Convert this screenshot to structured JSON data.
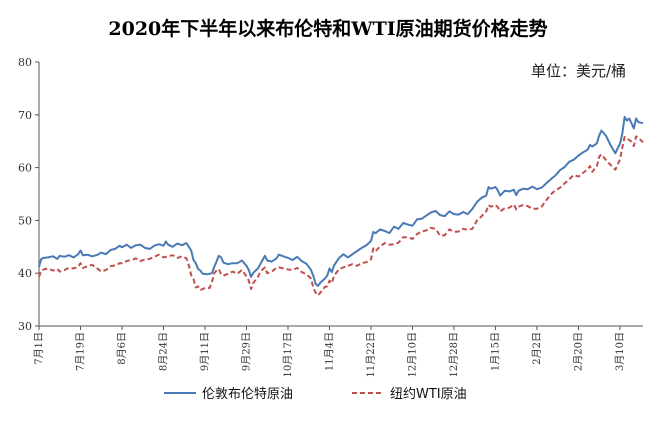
{
  "chart_data": {
    "type": "line",
    "title": "2020年下半年以来布伦特和WTI原油期货价格走势",
    "unit_label": "单位：美元/桶",
    "ylim": [
      30,
      80
    ],
    "y_ticks": [
      30,
      40,
      50,
      60,
      70,
      80
    ],
    "x_ticks": [
      "7月1日",
      "7月19日",
      "8月6日",
      "8月24日",
      "9月11日",
      "9月29日",
      "10月17日",
      "11月4日",
      "11月22日",
      "12月10日",
      "12月28日",
      "1月15日",
      "2月2日",
      "2月20日",
      "3月10日"
    ],
    "x_tick_day_offsets": [
      0,
      18,
      36,
      54,
      72,
      90,
      108,
      126,
      144,
      162,
      180,
      198,
      216,
      234,
      252
    ],
    "x_range_days": [
      0,
      262
    ],
    "grid": false,
    "legend_position": "bottom",
    "series": [
      {
        "name": "伦敦布伦特原油",
        "color": "#4a7ab5",
        "dash": "solid",
        "points": [
          [
            0,
            41.2
          ],
          [
            1,
            42.7
          ],
          [
            2,
            42.9
          ],
          [
            4,
            43.0
          ],
          [
            6,
            43.2
          ],
          [
            8,
            42.7
          ],
          [
            9,
            43.3
          ],
          [
            11,
            43.1
          ],
          [
            13,
            43.4
          ],
          [
            15,
            43.0
          ],
          [
            17,
            43.6
          ],
          [
            18,
            44.3
          ],
          [
            19,
            43.4
          ],
          [
            21,
            43.5
          ],
          [
            23,
            43.2
          ],
          [
            25,
            43.4
          ],
          [
            27,
            43.9
          ],
          [
            29,
            43.6
          ],
          [
            31,
            44.4
          ],
          [
            33,
            44.6
          ],
          [
            35,
            45.2
          ],
          [
            36,
            44.9
          ],
          [
            38,
            45.4
          ],
          [
            40,
            44.8
          ],
          [
            42,
            45.3
          ],
          [
            44,
            45.4
          ],
          [
            46,
            44.8
          ],
          [
            48,
            44.6
          ],
          [
            50,
            45.2
          ],
          [
            52,
            45.5
          ],
          [
            54,
            45.2
          ],
          [
            55,
            46.0
          ],
          [
            56,
            45.4
          ],
          [
            58,
            45.0
          ],
          [
            60,
            45.6
          ],
          [
            62,
            45.3
          ],
          [
            64,
            45.7
          ],
          [
            65,
            45.0
          ],
          [
            66,
            44.3
          ],
          [
            67,
            42.5
          ],
          [
            68,
            41.9
          ],
          [
            69,
            40.8
          ],
          [
            70,
            40.5
          ],
          [
            71,
            39.9
          ],
          [
            73,
            39.8
          ],
          [
            75,
            40.0
          ],
          [
            76,
            41.2
          ],
          [
            77,
            42.2
          ],
          [
            78,
            43.3
          ],
          [
            79,
            43.0
          ],
          [
            80,
            42.0
          ],
          [
            82,
            41.7
          ],
          [
            84,
            41.9
          ],
          [
            86,
            41.9
          ],
          [
            88,
            42.4
          ],
          [
            90,
            41.4
          ],
          [
            91,
            40.6
          ],
          [
            92,
            39.3
          ],
          [
            93,
            40.1
          ],
          [
            95,
            40.9
          ],
          [
            96,
            41.7
          ],
          [
            97,
            42.5
          ],
          [
            98,
            43.3
          ],
          [
            99,
            42.4
          ],
          [
            101,
            42.2
          ],
          [
            103,
            42.8
          ],
          [
            104,
            43.5
          ],
          [
            106,
            43.2
          ],
          [
            108,
            42.9
          ],
          [
            110,
            42.5
          ],
          [
            112,
            43.1
          ],
          [
            114,
            42.3
          ],
          [
            116,
            41.8
          ],
          [
            118,
            40.6
          ],
          [
            119,
            39.5
          ],
          [
            120,
            38.0
          ],
          [
            121,
            37.6
          ],
          [
            122,
            38.2
          ],
          [
            124,
            39.0
          ],
          [
            125,
            39.5
          ],
          [
            126,
            40.9
          ],
          [
            127,
            40.2
          ],
          [
            128,
            41.5
          ],
          [
            130,
            42.8
          ],
          [
            132,
            43.6
          ],
          [
            134,
            43.0
          ],
          [
            136,
            43.6
          ],
          [
            138,
            44.2
          ],
          [
            140,
            44.8
          ],
          [
            142,
            45.3
          ],
          [
            144,
            46.1
          ],
          [
            145,
            47.8
          ],
          [
            146,
            47.6
          ],
          [
            148,
            48.3
          ],
          [
            150,
            48.0
          ],
          [
            152,
            47.6
          ],
          [
            154,
            48.8
          ],
          [
            156,
            48.4
          ],
          [
            158,
            49.5
          ],
          [
            160,
            49.2
          ],
          [
            162,
            49.0
          ],
          [
            164,
            50.2
          ],
          [
            166,
            50.3
          ],
          [
            168,
            50.9
          ],
          [
            170,
            51.5
          ],
          [
            172,
            51.8
          ],
          [
            174,
            51.0
          ],
          [
            176,
            50.8
          ],
          [
            178,
            51.7
          ],
          [
            180,
            51.2
          ],
          [
            182,
            51.1
          ],
          [
            184,
            51.6
          ],
          [
            186,
            51.2
          ],
          [
            188,
            52.2
          ],
          [
            190,
            53.5
          ],
          [
            192,
            54.3
          ],
          [
            194,
            54.7
          ],
          [
            195,
            56.3
          ],
          [
            196,
            56.0
          ],
          [
            198,
            56.3
          ],
          [
            199,
            55.7
          ],
          [
            200,
            54.7
          ],
          [
            202,
            55.6
          ],
          [
            204,
            55.5
          ],
          [
            206,
            55.8
          ],
          [
            207,
            54.8
          ],
          [
            208,
            55.6
          ],
          [
            210,
            56.0
          ],
          [
            212,
            55.9
          ],
          [
            214,
            56.4
          ],
          [
            216,
            55.9
          ],
          [
            218,
            56.2
          ],
          [
            220,
            57.0
          ],
          [
            222,
            57.8
          ],
          [
            224,
            58.5
          ],
          [
            226,
            59.5
          ],
          [
            228,
            60.1
          ],
          [
            230,
            61.1
          ],
          [
            232,
            61.5
          ],
          [
            234,
            62.3
          ],
          [
            236,
            62.9
          ],
          [
            238,
            63.4
          ],
          [
            239,
            64.3
          ],
          [
            240,
            64.0
          ],
          [
            242,
            64.6
          ],
          [
            243,
            66.1
          ],
          [
            244,
            67.0
          ],
          [
            246,
            66.0
          ],
          [
            248,
            64.2
          ],
          [
            250,
            62.7
          ],
          [
            252,
            64.5
          ],
          [
            253,
            66.4
          ],
          [
            254,
            69.6
          ],
          [
            255,
            68.9
          ],
          [
            256,
            69.3
          ],
          [
            257,
            68.4
          ],
          [
            258,
            67.4
          ],
          [
            259,
            69.3
          ],
          [
            260,
            68.6
          ],
          [
            261,
            68.5
          ],
          [
            262,
            68.4
          ]
        ]
      },
      {
        "name": "纽约WTI原油",
        "color": "#c0504d",
        "dash": "dashed",
        "points": [
          [
            0,
            39.3
          ],
          [
            1,
            40.5
          ],
          [
            2,
            40.7
          ],
          [
            4,
            40.9
          ],
          [
            6,
            40.5
          ],
          [
            8,
            40.8
          ],
          [
            9,
            40.3
          ],
          [
            11,
            40.6
          ],
          [
            13,
            41.0
          ],
          [
            15,
            40.9
          ],
          [
            17,
            41.2
          ],
          [
            18,
            41.9
          ],
          [
            19,
            41.0
          ],
          [
            21,
            41.3
          ],
          [
            23,
            41.6
          ],
          [
            25,
            41.0
          ],
          [
            27,
            40.3
          ],
          [
            29,
            40.6
          ],
          [
            31,
            41.3
          ],
          [
            33,
            41.5
          ],
          [
            35,
            41.9
          ],
          [
            36,
            41.9
          ],
          [
            38,
            42.3
          ],
          [
            40,
            42.5
          ],
          [
            42,
            42.8
          ],
          [
            44,
            42.3
          ],
          [
            46,
            42.6
          ],
          [
            48,
            42.7
          ],
          [
            50,
            43.1
          ],
          [
            52,
            43.5
          ],
          [
            54,
            43.0
          ],
          [
            56,
            43.2
          ],
          [
            58,
            43.4
          ],
          [
            60,
            42.9
          ],
          [
            62,
            43.2
          ],
          [
            64,
            42.8
          ],
          [
            65,
            41.5
          ],
          [
            66,
            39.6
          ],
          [
            67,
            38.9
          ],
          [
            68,
            37.3
          ],
          [
            69,
            37.5
          ],
          [
            70,
            36.8
          ],
          [
            72,
            37.2
          ],
          [
            74,
            37.2
          ],
          [
            75,
            38.3
          ],
          [
            76,
            40.0
          ],
          [
            77,
            40.5
          ],
          [
            78,
            40.8
          ],
          [
            79,
            39.8
          ],
          [
            80,
            39.5
          ],
          [
            82,
            39.9
          ],
          [
            84,
            40.3
          ],
          [
            86,
            39.9
          ],
          [
            88,
            40.6
          ],
          [
            90,
            39.4
          ],
          [
            91,
            38.6
          ],
          [
            92,
            37.0
          ],
          [
            93,
            38.2
          ],
          [
            95,
            39.3
          ],
          [
            96,
            40.3
          ],
          [
            97,
            40.7
          ],
          [
            98,
            41.1
          ],
          [
            99,
            40.0
          ],
          [
            101,
            40.3
          ],
          [
            103,
            41.0
          ],
          [
            104,
            41.1
          ],
          [
            106,
            40.9
          ],
          [
            108,
            40.7
          ],
          [
            110,
            40.6
          ],
          [
            112,
            41.0
          ],
          [
            114,
            40.2
          ],
          [
            116,
            39.8
          ],
          [
            118,
            39.0
          ],
          [
            119,
            37.3
          ],
          [
            120,
            36.3
          ],
          [
            121,
            35.8
          ],
          [
            122,
            36.3
          ],
          [
            124,
            37.4
          ],
          [
            125,
            37.5
          ],
          [
            126,
            38.6
          ],
          [
            127,
            38.1
          ],
          [
            128,
            39.5
          ],
          [
            130,
            40.7
          ],
          [
            132,
            41.1
          ],
          [
            134,
            41.4
          ],
          [
            136,
            41.7
          ],
          [
            138,
            41.4
          ],
          [
            140,
            41.9
          ],
          [
            142,
            42.1
          ],
          [
            144,
            42.6
          ],
          [
            145,
            44.7
          ],
          [
            146,
            44.2
          ],
          [
            148,
            45.1
          ],
          [
            150,
            45.7
          ],
          [
            152,
            45.4
          ],
          [
            154,
            45.5
          ],
          [
            156,
            45.8
          ],
          [
            158,
            46.8
          ],
          [
            160,
            46.8
          ],
          [
            162,
            46.5
          ],
          [
            164,
            47.4
          ],
          [
            166,
            47.9
          ],
          [
            168,
            48.1
          ],
          [
            170,
            48.6
          ],
          [
            172,
            48.4
          ],
          [
            174,
            47.1
          ],
          [
            176,
            47.2
          ],
          [
            178,
            48.3
          ],
          [
            180,
            47.8
          ],
          [
            182,
            47.9
          ],
          [
            184,
            48.4
          ],
          [
            186,
            48.2
          ],
          [
            188,
            48.4
          ],
          [
            190,
            50.0
          ],
          [
            192,
            50.8
          ],
          [
            194,
            51.7
          ],
          [
            195,
            52.9
          ],
          [
            196,
            52.6
          ],
          [
            198,
            52.9
          ],
          [
            199,
            52.5
          ],
          [
            200,
            51.7
          ],
          [
            202,
            52.3
          ],
          [
            204,
            52.4
          ],
          [
            206,
            53.0
          ],
          [
            207,
            52.1
          ],
          [
            208,
            52.6
          ],
          [
            210,
            52.9
          ],
          [
            212,
            52.7
          ],
          [
            214,
            52.2
          ],
          [
            216,
            52.2
          ],
          [
            218,
            52.6
          ],
          [
            220,
            53.8
          ],
          [
            222,
            54.9
          ],
          [
            224,
            55.7
          ],
          [
            226,
            56.2
          ],
          [
            228,
            57.0
          ],
          [
            230,
            57.8
          ],
          [
            232,
            58.6
          ],
          [
            234,
            58.3
          ],
          [
            236,
            59.0
          ],
          [
            238,
            59.7
          ],
          [
            239,
            60.3
          ],
          [
            240,
            59.2
          ],
          [
            242,
            60.3
          ],
          [
            243,
            62.1
          ],
          [
            244,
            62.5
          ],
          [
            246,
            61.4
          ],
          [
            248,
            60.5
          ],
          [
            250,
            59.6
          ],
          [
            252,
            61.5
          ],
          [
            253,
            63.8
          ],
          [
            254,
            65.8
          ],
          [
            255,
            65.6
          ],
          [
            256,
            65.2
          ],
          [
            257,
            64.9
          ],
          [
            258,
            64.1
          ],
          [
            259,
            65.9
          ],
          [
            260,
            65.6
          ],
          [
            261,
            65.2
          ],
          [
            262,
            64.8
          ]
        ]
      }
    ]
  }
}
